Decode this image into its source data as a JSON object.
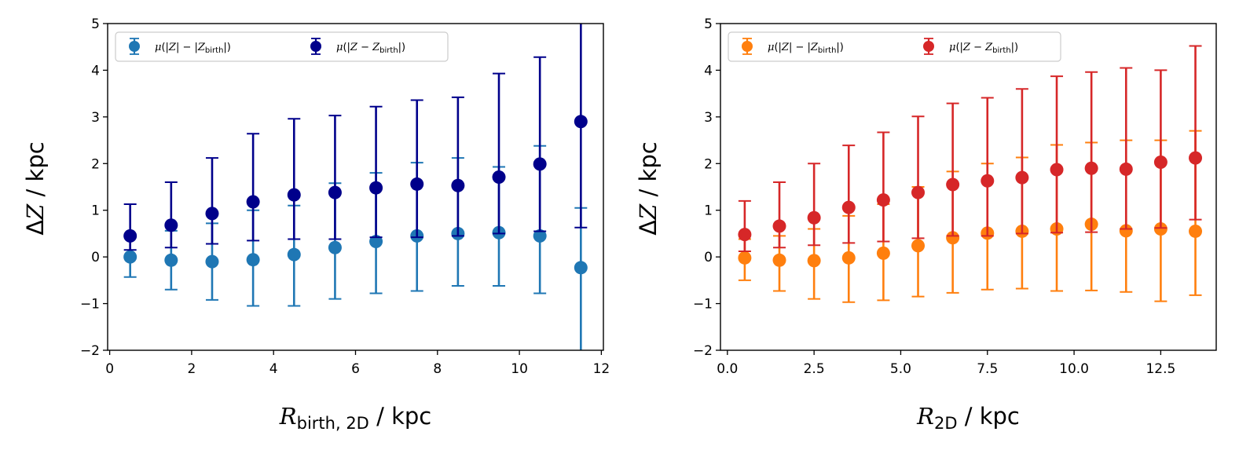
{
  "chart_data": [
    {
      "type": "scatter",
      "title": "",
      "xlabel": {
        "main": "R",
        "sub": "birth, 2D",
        "unit": " / kpc"
      },
      "ylabel": {
        "main": "ΔZ",
        "unit": " / kpc"
      },
      "xlim": [
        -0.05,
        12.05
      ],
      "ylim": [
        -2,
        5
      ],
      "xticks": [
        0,
        2,
        4,
        6,
        8,
        10,
        12
      ],
      "xtick_labels": [
        "0",
        "2",
        "4",
        "6",
        "8",
        "10",
        "12"
      ],
      "yticks": [
        -2,
        -1,
        0,
        1,
        2,
        3,
        4,
        5
      ],
      "ytick_labels": [
        "−2",
        "−1",
        "0",
        "1",
        "2",
        "3",
        "4",
        "5"
      ],
      "grid": false,
      "legend_position": "top-left",
      "series": [
        {
          "name": "μ(|Z| − |Z_birth|)",
          "legend": {
            "pre": "μ(|",
            "v1": "Z",
            "mid": "| − |",
            "v2": "Z",
            "sub": "birth",
            "post": "|)"
          },
          "color": "#1f77b4",
          "x": [
            0.5,
            1.5,
            2.5,
            3.5,
            4.5,
            5.5,
            6.5,
            7.5,
            8.5,
            9.5,
            10.5,
            11.5
          ],
          "y": [
            0.0,
            -0.07,
            -0.1,
            -0.06,
            0.05,
            0.2,
            0.33,
            0.45,
            0.5,
            0.52,
            0.45,
            -0.23
          ],
          "yerr_low": [
            -0.43,
            -0.7,
            -0.92,
            -1.05,
            -1.05,
            -0.9,
            -0.78,
            -0.73,
            -0.62,
            -0.62,
            -0.78,
            -2.5
          ],
          "yerr_high": [
            0.43,
            0.56,
            0.72,
            1.0,
            1.1,
            1.58,
            1.8,
            2.02,
            2.12,
            1.93,
            2.38,
            1.05
          ]
        },
        {
          "name": "μ(|Z − Z_birth|)",
          "legend": {
            "pre": "μ(|",
            "v1": "Z",
            "mid": " − ",
            "v2": "Z",
            "sub": "birth",
            "post": "|)"
          },
          "color": "#00008b",
          "x": [
            0.5,
            1.5,
            2.5,
            3.5,
            4.5,
            5.5,
            6.5,
            7.5,
            8.5,
            9.5,
            10.5,
            11.5
          ],
          "y": [
            0.45,
            0.68,
            0.93,
            1.18,
            1.33,
            1.38,
            1.48,
            1.56,
            1.53,
            1.71,
            1.99,
            2.9
          ],
          "yerr_low": [
            0.15,
            0.2,
            0.28,
            0.35,
            0.38,
            0.38,
            0.42,
            0.42,
            0.45,
            0.5,
            0.55,
            0.63
          ],
          "yerr_high": [
            1.13,
            1.6,
            2.12,
            2.64,
            2.96,
            3.03,
            3.22,
            3.36,
            3.42,
            3.93,
            4.28,
            5.3
          ]
        }
      ]
    },
    {
      "type": "scatter",
      "title": "",
      "xlabel": {
        "main": "R",
        "sub": "2D",
        "unit": " / kpc"
      },
      "ylabel": {
        "main": "ΔZ",
        "unit": " / kpc"
      },
      "xlim": [
        -0.2,
        14.1
      ],
      "ylim": [
        -2,
        5
      ],
      "xticks": [
        0.0,
        2.5,
        5.0,
        7.5,
        10.0,
        12.5
      ],
      "xtick_labels": [
        "0.0",
        "2.5",
        "5.0",
        "7.5",
        "10.0",
        "12.5"
      ],
      "yticks": [
        -2,
        -1,
        0,
        1,
        2,
        3,
        4,
        5
      ],
      "ytick_labels": [
        "−2",
        "−1",
        "0",
        "1",
        "2",
        "3",
        "4",
        "5"
      ],
      "grid": false,
      "legend_position": "top-left",
      "series": [
        {
          "name": "μ(|Z| − |Z_birth|)",
          "legend": {
            "pre": "μ(|",
            "v1": "Z",
            "mid": "| − |",
            "v2": "Z",
            "sub": "birth",
            "post": "|)"
          },
          "color": "#ff7f0e",
          "x": [
            0.5,
            1.5,
            2.5,
            3.5,
            4.5,
            5.5,
            6.5,
            7.5,
            8.5,
            9.5,
            10.5,
            11.5,
            12.5,
            13.5
          ],
          "y": [
            -0.02,
            -0.07,
            -0.08,
            -0.02,
            0.08,
            0.24,
            0.41,
            0.51,
            0.55,
            0.6,
            0.7,
            0.56,
            0.6,
            0.55
          ],
          "yerr_low": [
            -0.5,
            -0.73,
            -0.9,
            -0.97,
            -0.93,
            -0.85,
            -0.77,
            -0.7,
            -0.68,
            -0.73,
            -0.72,
            -0.75,
            -0.95,
            -0.82
          ],
          "yerr_high": [
            0.38,
            0.45,
            0.6,
            0.88,
            1.13,
            1.5,
            1.83,
            2.0,
            2.13,
            2.4,
            2.45,
            2.5,
            2.5,
            2.7
          ]
        },
        {
          "name": "μ(|Z − Z_birth|)",
          "legend": {
            "pre": "μ(|",
            "v1": "Z",
            "mid": " − ",
            "v2": "Z",
            "sub": "birth",
            "post": "|)"
          },
          "color": "#d62728",
          "x": [
            0.5,
            1.5,
            2.5,
            3.5,
            4.5,
            5.5,
            6.5,
            7.5,
            8.5,
            9.5,
            10.5,
            11.5,
            12.5,
            13.5
          ],
          "y": [
            0.48,
            0.66,
            0.84,
            1.06,
            1.22,
            1.38,
            1.55,
            1.63,
            1.7,
            1.87,
            1.9,
            1.88,
            2.03,
            2.12
          ],
          "yerr_low": [
            0.12,
            0.2,
            0.25,
            0.3,
            0.33,
            0.4,
            0.45,
            0.45,
            0.5,
            0.52,
            0.53,
            0.6,
            0.62,
            0.8
          ],
          "yerr_high": [
            1.2,
            1.6,
            2.0,
            2.39,
            2.67,
            3.01,
            3.29,
            3.41,
            3.6,
            3.87,
            3.96,
            4.05,
            4.0,
            4.52
          ]
        }
      ]
    }
  ]
}
